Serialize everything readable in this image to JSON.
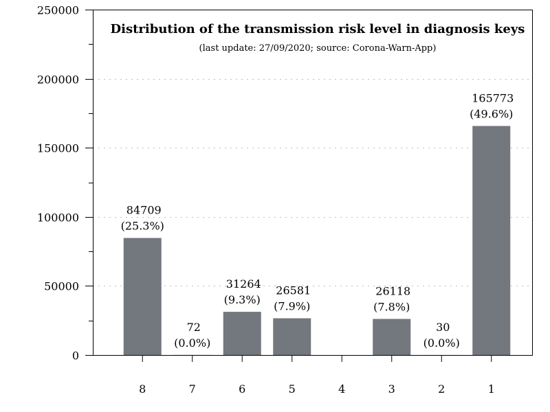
{
  "chart_data": {
    "type": "bar",
    "title": "Distribution of the transmission risk level in diagnosis keys",
    "subtitle": "(last update: 27/09/2020; source: Corona-Warn-App)",
    "xlabel": "",
    "ylabel": "",
    "categories": [
      "8",
      "7",
      "6",
      "5",
      "4",
      "3",
      "2",
      "1"
    ],
    "values": [
      84709,
      72,
      31264,
      26581,
      0,
      26118,
      30,
      165773
    ],
    "value_labels": [
      "84709",
      "72",
      "31264",
      "26581",
      "",
      "26118",
      "30",
      "165773"
    ],
    "percent_labels": [
      "(25.3%)",
      "(0.0%)",
      "(9.3%)",
      "(7.9%)",
      "",
      "(7.8%)",
      "(0.0%)",
      "(49.6%)"
    ],
    "ylim": [
      0,
      250000
    ],
    "yticks": [
      0,
      50000,
      100000,
      150000,
      200000,
      250000
    ],
    "ytick_labels": [
      "0",
      "50000",
      "100000",
      "150000",
      "200000",
      "250000"
    ],
    "grid": true,
    "bar_color": "#73777e"
  }
}
